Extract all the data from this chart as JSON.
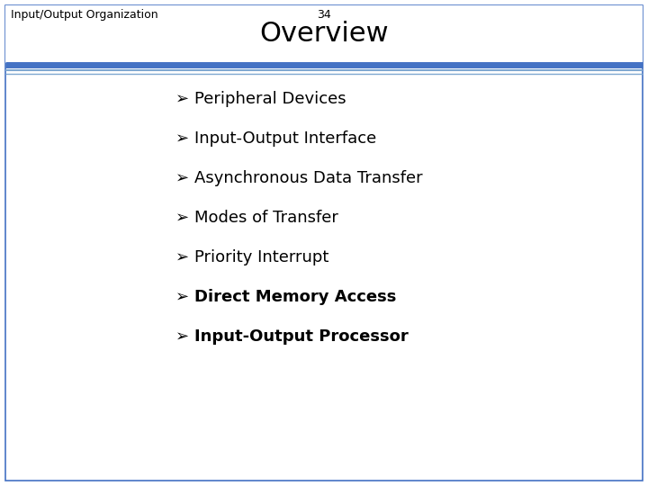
{
  "header_left": "Input/Output Organization",
  "header_center": "34",
  "title": "Overview",
  "title_fontsize": 22,
  "header_fontsize": 9,
  "items": [
    {
      "text": "Peripheral Devices",
      "bold": false
    },
    {
      "text": "Input-Output Interface",
      "bold": false
    },
    {
      "text": "Asynchronous Data Transfer",
      "bold": false
    },
    {
      "text": "Modes of Transfer",
      "bold": false
    },
    {
      "text": "Priority Interrupt",
      "bold": false
    },
    {
      "text": "Direct Memory Access",
      "bold": true
    },
    {
      "text": "Input-Output Processor",
      "bold": true
    }
  ],
  "background_color": "#ffffff",
  "border_color": "#4472c4",
  "thick_line_color": "#4472c4",
  "thin_line_color": "#7fa8d1",
  "text_color": "#000000",
  "item_fontsize": 13,
  "bullet_char": "➢"
}
